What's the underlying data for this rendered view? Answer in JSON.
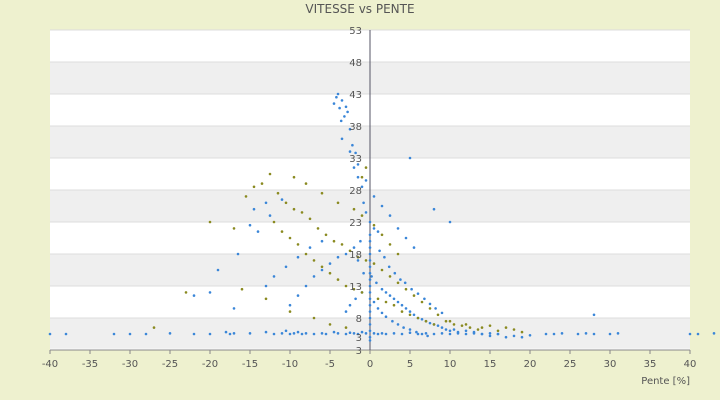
{
  "chart_data": {
    "type": "scatter",
    "title": "VITESSE vs PENTE",
    "xlabel": "Pente [%]",
    "ylabel": "",
    "xlim": [
      -40,
      40
    ],
    "ylim": [
      3,
      53
    ],
    "x_ticks": [
      "-40",
      "-35",
      "-30",
      "-25",
      "-20",
      "-15",
      "-10",
      "-5",
      "0",
      "5",
      "10",
      "15",
      "20",
      "25",
      "30",
      "35",
      "40"
    ],
    "y_ticks": [
      "3",
      "3",
      "8",
      "13",
      "18",
      "23",
      "28",
      "33",
      "38",
      "43",
      "48",
      "53"
    ],
    "grid": "horizontal bands",
    "legend": "none",
    "colors": {
      "series_a": "#3a86d8",
      "series_b": "#8a8a20",
      "band_light": "#ffffff",
      "band_dark": "#efefef"
    },
    "series": [
      {
        "color_key": "series_a",
        "points": [
          [
            -4.5,
            41.5
          ],
          [
            -4.2,
            42.5
          ],
          [
            -3.8,
            40.8
          ],
          [
            -3.5,
            42.0
          ],
          [
            -3.2,
            39.5
          ],
          [
            -3.0,
            41.0
          ],
          [
            -2.8,
            40.2
          ],
          [
            -4.0,
            43.0
          ],
          [
            -3.6,
            38.8
          ],
          [
            -2.5,
            37.5
          ],
          [
            -2.2,
            35.0
          ],
          [
            -1.8,
            33.8
          ],
          [
            -2.0,
            31.5
          ],
          [
            -1.5,
            30.0
          ],
          [
            -1.0,
            28.5
          ],
          [
            -0.8,
            26.0
          ],
          [
            -0.5,
            24.5
          ],
          [
            0.0,
            23.0
          ],
          [
            0.5,
            22.0
          ],
          [
            1.0,
            21.5
          ],
          [
            -1.2,
            20.0
          ],
          [
            -2.0,
            19.0
          ],
          [
            -3.0,
            18.0
          ],
          [
            -4.0,
            17.5
          ],
          [
            -5.0,
            16.5
          ],
          [
            -6.0,
            15.5
          ],
          [
            -7.0,
            14.5
          ],
          [
            -8.0,
            13.0
          ],
          [
            -9.0,
            11.5
          ],
          [
            -10.0,
            10.0
          ],
          [
            -1.5,
            17.0
          ],
          [
            -0.8,
            15.0
          ],
          [
            0.2,
            14.5
          ],
          [
            0.8,
            13.5
          ],
          [
            1.5,
            12.5
          ],
          [
            2.0,
            12.0
          ],
          [
            2.5,
            11.5
          ],
          [
            3.0,
            11.0
          ],
          [
            3.5,
            10.5
          ],
          [
            4.0,
            10.0
          ],
          [
            4.5,
            9.5
          ],
          [
            5.0,
            9.0
          ],
          [
            5.5,
            8.5
          ],
          [
            6.0,
            8.0
          ],
          [
            6.5,
            7.8
          ],
          [
            7.0,
            7.5
          ],
          [
            7.5,
            7.2
          ],
          [
            8.0,
            7.0
          ],
          [
            8.5,
            6.8
          ],
          [
            9.0,
            6.5
          ],
          [
            9.5,
            6.2
          ],
          [
            10.0,
            6.0
          ],
          [
            10.5,
            6.2
          ],
          [
            11.0,
            5.8
          ],
          [
            12.0,
            5.5
          ],
          [
            13.0,
            5.8
          ],
          [
            14.0,
            5.5
          ],
          [
            15.0,
            5.2
          ],
          [
            16.0,
            5.5
          ],
          [
            17.0,
            5.0
          ],
          [
            18.0,
            5.2
          ],
          [
            19.0,
            5.0
          ],
          [
            20.0,
            5.3
          ],
          [
            1.2,
            18.5
          ],
          [
            1.8,
            17.5
          ],
          [
            2.4,
            16.0
          ],
          [
            3.1,
            15.0
          ],
          [
            3.8,
            14.0
          ],
          [
            4.4,
            13.5
          ],
          [
            5.2,
            12.5
          ],
          [
            6.0,
            11.8
          ],
          [
            6.8,
            11.0
          ],
          [
            7.5,
            10.2
          ],
          [
            8.2,
            9.5
          ],
          [
            9.0,
            8.8
          ],
          [
            -1.0,
            12.0
          ],
          [
            -1.8,
            11.0
          ],
          [
            -2.5,
            10.0
          ],
          [
            -3.0,
            9.0
          ],
          [
            0.5,
            10.5
          ],
          [
            1.0,
            9.5
          ],
          [
            1.5,
            8.8
          ],
          [
            2.0,
            8.2
          ],
          [
            2.8,
            7.5
          ],
          [
            3.5,
            7.0
          ],
          [
            4.2,
            6.5
          ],
          [
            5.0,
            6.2
          ],
          [
            5.8,
            5.8
          ],
          [
            6.5,
            5.5
          ],
          [
            7.2,
            5.2
          ],
          [
            -6.0,
            20.0
          ],
          [
            -7.5,
            19.0
          ],
          [
            -9.0,
            17.5
          ],
          [
            -10.5,
            16.0
          ],
          [
            -12.0,
            14.5
          ],
          [
            -13.0,
            13.0
          ],
          [
            -14.0,
            21.5
          ],
          [
            -15.0,
            22.5
          ],
          [
            -12.5,
            24.0
          ],
          [
            -11.0,
            26.5
          ],
          [
            -3.5,
            36.0
          ],
          [
            -2.5,
            34.0
          ],
          [
            -1.5,
            32.0
          ],
          [
            -0.5,
            29.5
          ],
          [
            0.5,
            27.0
          ],
          [
            1.5,
            25.5
          ],
          [
            2.5,
            24.0
          ],
          [
            3.5,
            22.0
          ],
          [
            4.5,
            20.5
          ],
          [
            5.5,
            19.0
          ],
          [
            -40,
            5.5
          ],
          [
            -38,
            5.5
          ],
          [
            -32,
            5.5
          ],
          [
            -30,
            5.5
          ],
          [
            -28,
            5.5
          ],
          [
            -25,
            5.6
          ],
          [
            -22,
            5.5
          ],
          [
            -20,
            5.5
          ],
          [
            -18,
            5.8
          ],
          [
            -17.5,
            5.5
          ],
          [
            -17,
            5.6
          ],
          [
            -15,
            5.6
          ],
          [
            -13,
            5.8
          ],
          [
            -12,
            5.5
          ],
          [
            -11,
            5.6
          ],
          [
            -10.5,
            6.0
          ],
          [
            -10,
            5.5
          ],
          [
            -9.5,
            5.6
          ],
          [
            -9,
            5.8
          ],
          [
            -8.5,
            5.5
          ],
          [
            -8,
            5.6
          ],
          [
            -7,
            5.5
          ],
          [
            -6,
            5.6
          ],
          [
            -5.5,
            5.5
          ],
          [
            -4.5,
            5.8
          ],
          [
            -4,
            5.6
          ],
          [
            -3,
            5.5
          ],
          [
            -2.5,
            5.7
          ],
          [
            -2,
            5.6
          ],
          [
            -1.5,
            5.5
          ],
          [
            -1,
            5.8
          ],
          [
            -0.5,
            5.6
          ],
          [
            0,
            4.5
          ],
          [
            0,
            5.0
          ],
          [
            0,
            6.0
          ],
          [
            0,
            7.0
          ],
          [
            0,
            8.0
          ],
          [
            0,
            9.0
          ],
          [
            0,
            10.0
          ],
          [
            0,
            11.0
          ],
          [
            0,
            12.0
          ],
          [
            0,
            13.0
          ],
          [
            0,
            14.0
          ],
          [
            0,
            15.0
          ],
          [
            0,
            16.0
          ],
          [
            0,
            17.0
          ],
          [
            0,
            18.0
          ],
          [
            0,
            19.0
          ],
          [
            0,
            20.0
          ],
          [
            0,
            21.0
          ],
          [
            0.5,
            5.6
          ],
          [
            1,
            5.5
          ],
          [
            1.5,
            5.6
          ],
          [
            2,
            5.5
          ],
          [
            3,
            5.6
          ],
          [
            4,
            5.5
          ],
          [
            5,
            5.7
          ],
          [
            6,
            5.5
          ],
          [
            7,
            5.6
          ],
          [
            8,
            5.5
          ],
          [
            9,
            5.6
          ],
          [
            10,
            5.5
          ],
          [
            11,
            5.6
          ],
          [
            12,
            6.0
          ],
          [
            13,
            5.6
          ],
          [
            14,
            5.5
          ],
          [
            15,
            5.6
          ],
          [
            16,
            5.5
          ],
          [
            22,
            5.5
          ],
          [
            23,
            5.5
          ],
          [
            24,
            5.6
          ],
          [
            26,
            5.5
          ],
          [
            27,
            5.6
          ],
          [
            28,
            5.5
          ],
          [
            30,
            5.5
          ],
          [
            31,
            5.6
          ],
          [
            40,
            5.5
          ],
          [
            41,
            5.5
          ],
          [
            43,
            5.6
          ],
          [
            28,
            8.5
          ],
          [
            5,
            33.0
          ],
          [
            8,
            25.0
          ],
          [
            10,
            23.0
          ],
          [
            -13,
            26.0
          ],
          [
            -14.5,
            25.0
          ],
          [
            -16.5,
            18.0
          ],
          [
            -20,
            12.0
          ],
          [
            -22,
            11.5
          ],
          [
            -19,
            15.5
          ],
          [
            -17,
            9.5
          ]
        ]
      },
      {
        "color_key": "series_b",
        "points": [
          [
            -15.5,
            27.0
          ],
          [
            -14.5,
            28.5
          ],
          [
            -13.5,
            29.0
          ],
          [
            -12.5,
            30.5
          ],
          [
            -11.5,
            27.5
          ],
          [
            -10.5,
            26.0
          ],
          [
            -9.5,
            25.0
          ],
          [
            -8.5,
            24.5
          ],
          [
            -7.5,
            23.5
          ],
          [
            -6.5,
            22.0
          ],
          [
            -5.5,
            21.0
          ],
          [
            -4.5,
            20.0
          ],
          [
            -3.5,
            19.5
          ],
          [
            -2.5,
            18.5
          ],
          [
            -1.5,
            17.5
          ],
          [
            -0.5,
            17.0
          ],
          [
            0.5,
            16.5
          ],
          [
            1.5,
            15.5
          ],
          [
            2.5,
            14.5
          ],
          [
            3.5,
            13.5
          ],
          [
            4.5,
            12.5
          ],
          [
            5.5,
            11.5
          ],
          [
            6.5,
            10.5
          ],
          [
            7.5,
            9.5
          ],
          [
            8.5,
            8.5
          ],
          [
            9.5,
            7.5
          ],
          [
            10.5,
            7.0
          ],
          [
            11.5,
            6.8
          ],
          [
            12.5,
            6.5
          ],
          [
            13.5,
            6.2
          ],
          [
            -12,
            23.0
          ],
          [
            -11,
            21.5
          ],
          [
            -10,
            20.5
          ],
          [
            -9,
            19.5
          ],
          [
            -8,
            18.0
          ],
          [
            -7,
            17.0
          ],
          [
            -6,
            16.0
          ],
          [
            -5,
            15.0
          ],
          [
            -4,
            14.0
          ],
          [
            -3,
            13.0
          ],
          [
            -2,
            12.5
          ],
          [
            -1,
            12.0
          ],
          [
            1,
            11.0
          ],
          [
            2,
            10.5
          ],
          [
            3,
            10.0
          ],
          [
            4,
            9.0
          ],
          [
            5,
            8.5
          ],
          [
            6,
            8.0
          ],
          [
            7,
            7.5
          ],
          [
            8,
            7.0
          ],
          [
            -9.5,
            30.0
          ],
          [
            -8.0,
            29.0
          ],
          [
            -6.0,
            27.5
          ],
          [
            -4.0,
            26.0
          ],
          [
            -2.0,
            25.0
          ],
          [
            -1.0,
            24.0
          ],
          [
            0.5,
            22.5
          ],
          [
            1.5,
            21.0
          ],
          [
            2.5,
            19.5
          ],
          [
            3.5,
            18.0
          ],
          [
            -17,
            22.0
          ],
          [
            -20,
            23.0
          ],
          [
            -23,
            12.0
          ],
          [
            -27,
            6.5
          ],
          [
            -16,
            12.5
          ],
          [
            -13,
            11.0
          ],
          [
            -10,
            9.0
          ],
          [
            -7,
            8.0
          ],
          [
            -5,
            7.0
          ],
          [
            -3,
            6.5
          ],
          [
            10,
            7.5
          ],
          [
            12,
            7.0
          ],
          [
            14,
            6.5
          ],
          [
            16,
            6.0
          ],
          [
            18,
            6.2
          ],
          [
            19,
            5.8
          ],
          [
            15,
            6.8
          ],
          [
            17,
            6.5
          ],
          [
            -1,
            30.0
          ],
          [
            -0.5,
            31.5
          ]
        ]
      }
    ]
  }
}
